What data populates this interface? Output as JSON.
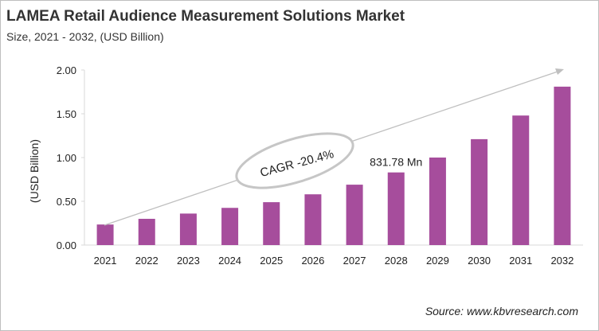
{
  "chart_data": {
    "type": "bar",
    "title": "LAMEA Retail Audience Measurement Solutions Market",
    "subtitle": "Size, 2021 - 2032, (USD Billion)",
    "xlabel": "",
    "ylabel": "(USD Billion)",
    "ylim": [
      0,
      2.0
    ],
    "yticks": [
      "0.00",
      "0.50",
      "1.00",
      "1.50",
      "2.00"
    ],
    "categories": [
      "2021",
      "2022",
      "2023",
      "2024",
      "2025",
      "2026",
      "2027",
      "2028",
      "2029",
      "2030",
      "2031",
      "2032"
    ],
    "values": [
      0.235,
      0.3,
      0.36,
      0.425,
      0.49,
      0.58,
      0.69,
      0.83,
      1.0,
      1.21,
      1.48,
      1.81
    ],
    "bar_color": "#a64d9c",
    "grid": false,
    "annotations": {
      "cagr": "CAGR -20.4%",
      "data_label": "831.78 Mn",
      "data_label_category": "2028"
    },
    "source": "Source: www.kbvresearch.com"
  }
}
